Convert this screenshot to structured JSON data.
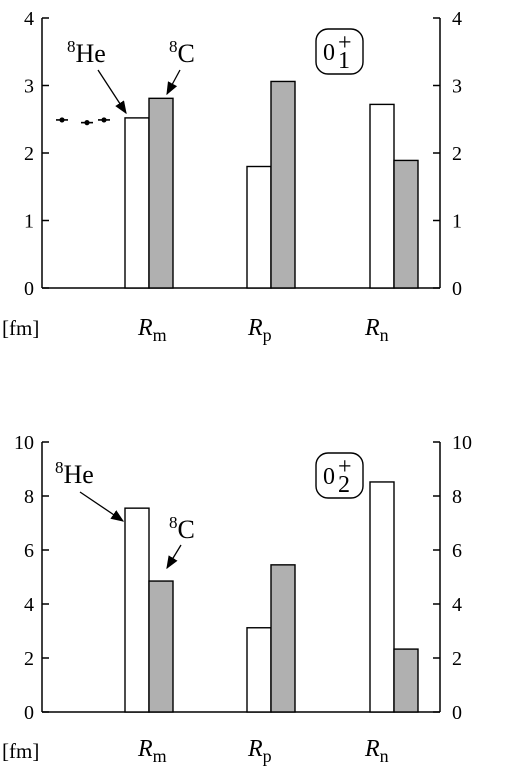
{
  "chart_data": [
    {
      "type": "bar",
      "unit_label": "[fm]",
      "state_label": {
        "base": "0",
        "sup": "+",
        "sub": "1"
      },
      "categories": [
        {
          "main": "R",
          "sub": "m"
        },
        {
          "main": "R",
          "sub": "p"
        },
        {
          "main": "R",
          "sub": "n"
        }
      ],
      "series": [
        {
          "name": "8He",
          "name_sup": "8",
          "name_base": "He",
          "color": "#ffffff",
          "values": [
            2.52,
            1.8,
            2.72
          ]
        },
        {
          "name": "8C",
          "name_sup": "8",
          "name_base": "C",
          "color": "#b0b0b0",
          "values": [
            2.81,
            3.06,
            1.89
          ]
        }
      ],
      "experimental": [
        2.49,
        2.45,
        2.49
      ],
      "ylim": [
        0,
        4
      ],
      "yticks": [
        0,
        1,
        2,
        3,
        4
      ],
      "grid": false
    },
    {
      "type": "bar",
      "unit_label": "[fm]",
      "state_label": {
        "base": "0",
        "sup": "+",
        "sub": "2"
      },
      "categories": [
        {
          "main": "R",
          "sub": "m"
        },
        {
          "main": "R",
          "sub": "p"
        },
        {
          "main": "R",
          "sub": "n"
        }
      ],
      "series": [
        {
          "name": "8He",
          "name_sup": "8",
          "name_base": "He",
          "color": "#ffffff",
          "values": [
            7.55,
            3.12,
            8.52
          ]
        },
        {
          "name": "8C",
          "name_sup": "8",
          "name_base": "C",
          "color": "#b0b0b0",
          "values": [
            4.85,
            5.45,
            2.33
          ]
        }
      ],
      "ylim": [
        0,
        10
      ],
      "yticks": [
        0,
        2,
        4,
        6,
        8,
        10
      ],
      "grid": false
    }
  ]
}
